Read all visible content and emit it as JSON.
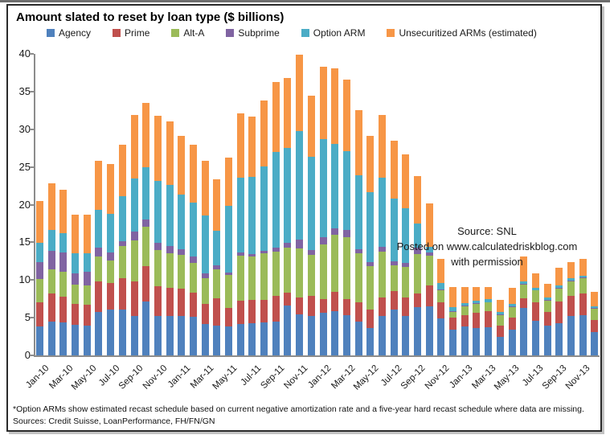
{
  "title": "Amount slated to reset by loan type ($ billions)",
  "annotation": {
    "line1": "Source: SNL",
    "line2": "Posted on www.calculatedriskblog.com",
    "line3": "with permission"
  },
  "footnote": "*Option ARMs show estimated recast schedule based on current negative amortization rate and a five-year hard recast schedule where data are missing.",
  "sources": "Sources: Credit Suisse, LoanPerformance, FH/FN/GN",
  "colors": {
    "agency": "#4F81BD",
    "prime": "#C0504D",
    "alt_a": "#9BBB59",
    "subprime": "#8064A2",
    "option_arm": "#4BACC6",
    "unsecuritized": "#F79646",
    "axis": "#8c8c8c",
    "frame": "#2b2b2b"
  },
  "chart_data": {
    "type": "bar",
    "stacked": true,
    "grid": false,
    "legend_position": "top",
    "ylim": [
      0,
      40
    ],
    "y_ticks": [
      0,
      5,
      10,
      15,
      20,
      25,
      30,
      35,
      40
    ],
    "x_label_every": 2,
    "categories": [
      "Jan-10",
      "Feb-10",
      "Mar-10",
      "Apr-10",
      "May-10",
      "Jun-10",
      "Jul-10",
      "Aug-10",
      "Sep-10",
      "Oct-10",
      "Nov-10",
      "Dec-10",
      "Jan-11",
      "Feb-11",
      "Mar-11",
      "Apr-11",
      "May-11",
      "Jun-11",
      "Jul-11",
      "Aug-11",
      "Sep-11",
      "Oct-11",
      "Nov-11",
      "Dec-11",
      "Jan-12",
      "Feb-12",
      "Mar-12",
      "Apr-12",
      "May-12",
      "Jun-12",
      "Jul-12",
      "Aug-12",
      "Sep-12",
      "Oct-12",
      "Nov-12",
      "Dec-12",
      "Jan-13",
      "Feb-13",
      "Mar-13",
      "Apr-13",
      "May-13",
      "Jun-13",
      "Jul-13",
      "Aug-13",
      "Sep-13",
      "Oct-13",
      "Nov-13",
      "Dec-13"
    ],
    "series": [
      {
        "name": "Agency",
        "color": "#4F81BD",
        "values": [
          3.8,
          4.5,
          4.4,
          4.1,
          4.0,
          5.8,
          6.1,
          6.1,
          5.2,
          7.2,
          5.2,
          5.2,
          5.2,
          5.1,
          4.2,
          4.0,
          3.8,
          4.2,
          4.3,
          4.4,
          4.5,
          6.6,
          5.4,
          5.2,
          5.7,
          5.9,
          5.3,
          4.5,
          3.6,
          5.2,
          6.1,
          5.2,
          6.4,
          6.5,
          4.9,
          3.4,
          3.8,
          3.6,
          3.7,
          2.5,
          3.4,
          6.3,
          4.6,
          3.9,
          4.3,
          5.2,
          5.3,
          3.1
        ]
      },
      {
        "name": "Prime",
        "color": "#C0504D",
        "values": [
          3.3,
          3.7,
          3.4,
          2.7,
          2.7,
          4.0,
          3.5,
          4.1,
          4.6,
          4.6,
          4.0,
          3.8,
          3.7,
          3.2,
          2.6,
          3.6,
          2.5,
          3.1,
          3.1,
          3.0,
          3.4,
          1.7,
          2.3,
          2.7,
          1.8,
          2.5,
          2.2,
          2.5,
          2.5,
          2.5,
          2.4,
          2.5,
          1.8,
          2.8,
          2.2,
          1.6,
          1.5,
          2.1,
          2.2,
          1.5,
          1.6,
          1.3,
          2.4,
          1.9,
          2.8,
          2.7,
          2.9,
          1.6
        ]
      },
      {
        "name": "Alt-A",
        "color": "#9BBB59",
        "values": [
          3.0,
          3.2,
          3.3,
          2.6,
          2.6,
          3.3,
          3.0,
          4.3,
          5.5,
          5.3,
          4.8,
          4.6,
          4.4,
          4.0,
          3.4,
          3.8,
          4.4,
          5.9,
          5.7,
          6.1,
          5.9,
          6.0,
          6.5,
          5.4,
          7.2,
          7.6,
          8.2,
          6.6,
          5.7,
          6.1,
          3.4,
          4.0,
          5.2,
          3.9,
          1.5,
          0.8,
          1.2,
          1.1,
          1.1,
          1.3,
          1.4,
          1.8,
          1.6,
          1.5,
          1.8,
          1.9,
          2.0,
          1.5
        ]
      },
      {
        "name": "Subprime",
        "color": "#8064A2",
        "values": [
          2.3,
          2.5,
          2.6,
          1.5,
          1.8,
          1.2,
          1.1,
          0.7,
          1.1,
          0.9,
          0.9,
          0.9,
          0.8,
          0.8,
          0.7,
          0.6,
          0.3,
          0.4,
          0.3,
          0.4,
          0.5,
          0.6,
          1.2,
          0.7,
          1.0,
          0.9,
          0.9,
          0.5,
          0.6,
          0.6,
          0.6,
          0.6,
          0.9,
          0.5,
          0.2,
          0.1,
          0.1,
          0.1,
          0.1,
          0.1,
          0.1,
          0.1,
          0.1,
          0.1,
          0.1,
          0.1,
          0.1,
          0.1
        ]
      },
      {
        "name": "Option ARM",
        "color": "#4BACC6",
        "values": [
          2.5,
          2.7,
          2.5,
          2.6,
          2.5,
          5.0,
          5.1,
          5.9,
          7.1,
          7.0,
          8.3,
          8.1,
          7.2,
          7.2,
          7.7,
          4.5,
          8.8,
          10.0,
          10.3,
          11.2,
          12.7,
          12.6,
          14.4,
          12.3,
          13.0,
          11.2,
          10.5,
          9.8,
          9.3,
          9.2,
          8.3,
          7.2,
          3.2,
          0.7,
          0.8,
          0.5,
          0.3,
          0.4,
          0.4,
          0.4,
          0.3,
          0.3,
          0.3,
          0.3,
          0.3,
          0.3,
          0.3,
          0.2
        ]
      },
      {
        "name": "Unsecuritized ARMs (estimated)",
        "color": "#F79646",
        "values": [
          5.6,
          6.2,
          5.8,
          5.2,
          5.1,
          6.5,
          6.6,
          6.8,
          8.4,
          8.5,
          8.6,
          8.4,
          7.8,
          7.7,
          7.2,
          6.9,
          6.5,
          8.5,
          8.0,
          8.7,
          9.3,
          9.3,
          10.1,
          8.2,
          9.6,
          10.0,
          9.5,
          8.6,
          7.4,
          8.3,
          7.7,
          7.2,
          6.3,
          5.8,
          3.2,
          2.7,
          2.2,
          1.8,
          1.6,
          1.6,
          2.2,
          3.3,
          1.9,
          1.8,
          2.3,
          2.2,
          2.2,
          1.9
        ]
      }
    ]
  }
}
